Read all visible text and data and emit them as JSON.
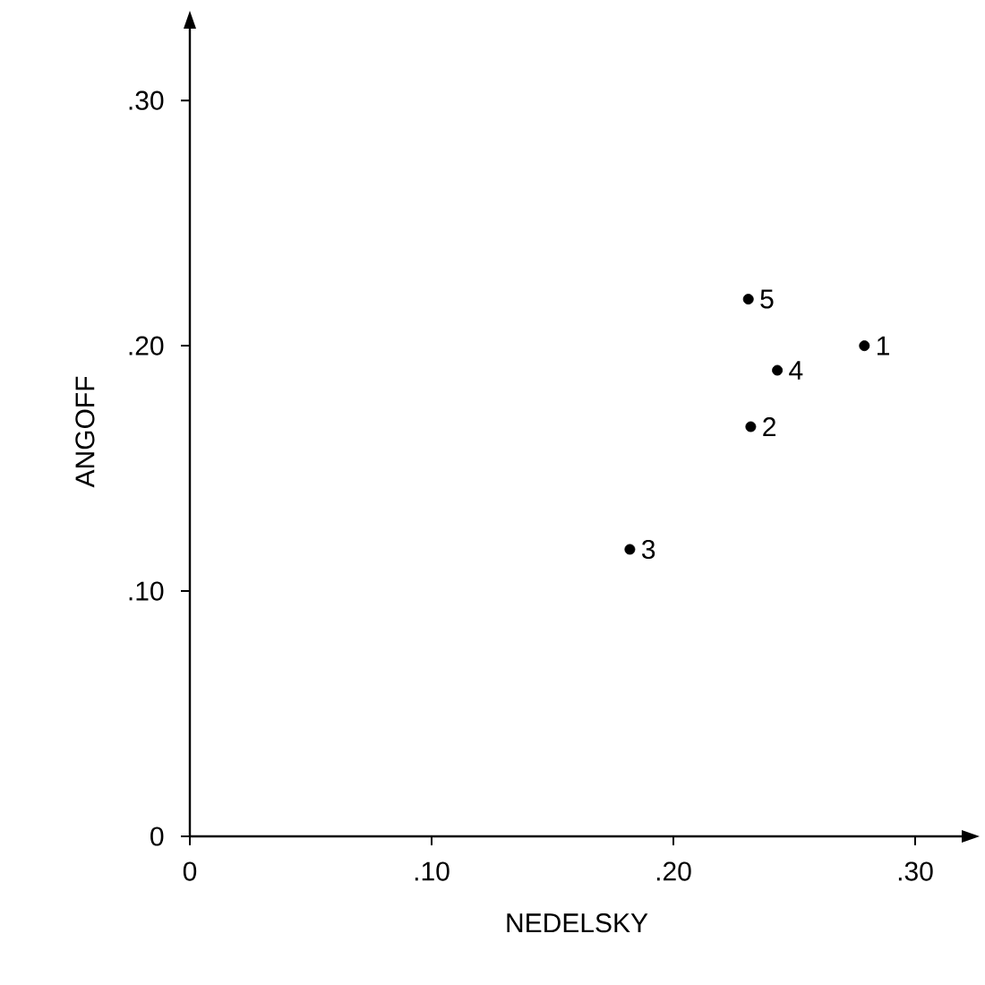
{
  "chart_data": {
    "type": "scatter",
    "xlabel": "NEDELSKY",
    "ylabel": "ANGOFF",
    "x": [
      0.279,
      0.232,
      0.182,
      0.243,
      0.231
    ],
    "values": [
      0.2,
      0.167,
      0.117,
      0.19,
      0.219
    ],
    "color": "#000000",
    "marker": "circle",
    "xlim": [
      0,
      0.32
    ],
    "ylim": [
      0,
      0.33
    ],
    "xticks": [
      0,
      {
        "value": 0.1,
        "label": ".10"
      },
      {
        "value": 0.2,
        "label": ".20"
      },
      {
        "value": 0.3,
        "label": ".30"
      }
    ],
    "yticks": [
      0,
      {
        "value": 0.1,
        "label": ".10"
      },
      {
        "value": 0.2,
        "label": ".20"
      },
      {
        "value": 0.3,
        "label": ".30"
      }
    ],
    "annotations": [
      {
        "text": "1",
        "x": 0.279,
        "y": 0.2
      },
      {
        "text": "2",
        "x": 0.232,
        "y": 0.167
      },
      {
        "text": "3",
        "x": 0.182,
        "y": 0.117
      },
      {
        "text": "4",
        "x": 0.243,
        "y": 0.19
      },
      {
        "text": "5",
        "x": 0.231,
        "y": 0.219
      }
    ]
  }
}
